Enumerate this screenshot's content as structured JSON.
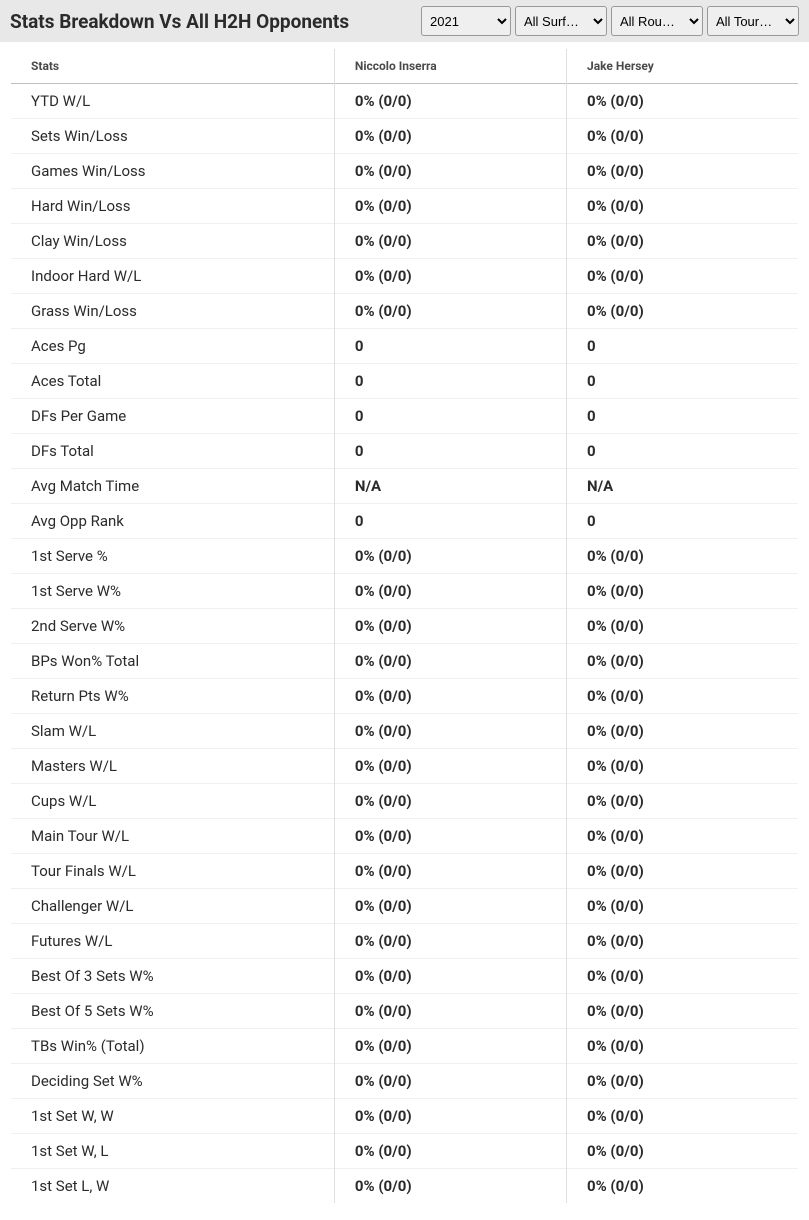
{
  "header": {
    "title": "Stats Breakdown Vs All H2H Opponents",
    "filters": {
      "year": {
        "selected": "2021",
        "options": [
          "2021"
        ]
      },
      "surface": {
        "selected": "All Surf…",
        "options": [
          "All Surf…"
        ]
      },
      "round": {
        "selected": "All Rou…",
        "options": [
          "All Rou…"
        ]
      },
      "tour": {
        "selected": "All Tour…",
        "options": [
          "All Tour…"
        ]
      }
    }
  },
  "table": {
    "columns": {
      "stats": "Stats",
      "player1": "Niccolo Inserra",
      "player2": "Jake Hersey"
    },
    "rows": [
      {
        "label": "YTD W/L",
        "p1": "0% (0/0)",
        "p2": "0% (0/0)"
      },
      {
        "label": "Sets Win/Loss",
        "p1": "0% (0/0)",
        "p2": "0% (0/0)"
      },
      {
        "label": "Games Win/Loss",
        "p1": "0% (0/0)",
        "p2": "0% (0/0)"
      },
      {
        "label": "Hard Win/Loss",
        "p1": "0% (0/0)",
        "p2": "0% (0/0)"
      },
      {
        "label": "Clay Win/Loss",
        "p1": "0% (0/0)",
        "p2": "0% (0/0)"
      },
      {
        "label": "Indoor Hard W/L",
        "p1": "0% (0/0)",
        "p2": "0% (0/0)"
      },
      {
        "label": "Grass Win/Loss",
        "p1": "0% (0/0)",
        "p2": "0% (0/0)"
      },
      {
        "label": "Aces Pg",
        "p1": "0",
        "p2": "0"
      },
      {
        "label": "Aces Total",
        "p1": "0",
        "p2": "0"
      },
      {
        "label": "DFs Per Game",
        "p1": "0",
        "p2": "0"
      },
      {
        "label": "DFs Total",
        "p1": "0",
        "p2": "0"
      },
      {
        "label": "Avg Match Time",
        "p1": "N/A",
        "p2": "N/A"
      },
      {
        "label": "Avg Opp Rank",
        "p1": "0",
        "p2": "0"
      },
      {
        "label": "1st Serve %",
        "p1": "0% (0/0)",
        "p2": "0% (0/0)"
      },
      {
        "label": "1st Serve W%",
        "p1": "0% (0/0)",
        "p2": "0% (0/0)"
      },
      {
        "label": "2nd Serve W%",
        "p1": "0% (0/0)",
        "p2": "0% (0/0)"
      },
      {
        "label": "BPs Won% Total",
        "p1": "0% (0/0)",
        "p2": "0% (0/0)"
      },
      {
        "label": "Return Pts W%",
        "p1": "0% (0/0)",
        "p2": "0% (0/0)"
      },
      {
        "label": "Slam W/L",
        "p1": "0% (0/0)",
        "p2": "0% (0/0)"
      },
      {
        "label": "Masters W/L",
        "p1": "0% (0/0)",
        "p2": "0% (0/0)"
      },
      {
        "label": "Cups W/L",
        "p1": "0% (0/0)",
        "p2": "0% (0/0)"
      },
      {
        "label": "Main Tour W/L",
        "p1": "0% (0/0)",
        "p2": "0% (0/0)"
      },
      {
        "label": "Tour Finals W/L",
        "p1": "0% (0/0)",
        "p2": "0% (0/0)"
      },
      {
        "label": "Challenger W/L",
        "p1": "0% (0/0)",
        "p2": "0% (0/0)"
      },
      {
        "label": "Futures W/L",
        "p1": "0% (0/0)",
        "p2": "0% (0/0)"
      },
      {
        "label": "Best Of 3 Sets W%",
        "p1": "0% (0/0)",
        "p2": "0% (0/0)"
      },
      {
        "label": "Best Of 5 Sets W%",
        "p1": "0% (0/0)",
        "p2": "0% (0/0)"
      },
      {
        "label": "TBs Win% (Total)",
        "p1": "0% (0/0)",
        "p2": "0% (0/0)"
      },
      {
        "label": "Deciding Set W%",
        "p1": "0% (0/0)",
        "p2": "0% (0/0)"
      },
      {
        "label": "1st Set W, W",
        "p1": "0% (0/0)",
        "p2": "0% (0/0)"
      },
      {
        "label": "1st Set W, L",
        "p1": "0% (0/0)",
        "p2": "0% (0/0)"
      },
      {
        "label": "1st Set L, W",
        "p1": "0% (0/0)",
        "p2": "0% (0/0)"
      }
    ]
  },
  "styling": {
    "header_bg": "#e8e8e8",
    "title_color": "#2b2b2b",
    "title_fontsize": 19,
    "border_color": "#c0c0c0",
    "row_border": "#f0f0f0",
    "col_border": "#e0e0e0",
    "th_color": "#4a4a4a",
    "th_fontsize": 12,
    "td_fontsize": 15,
    "value_fontweight": 700
  }
}
